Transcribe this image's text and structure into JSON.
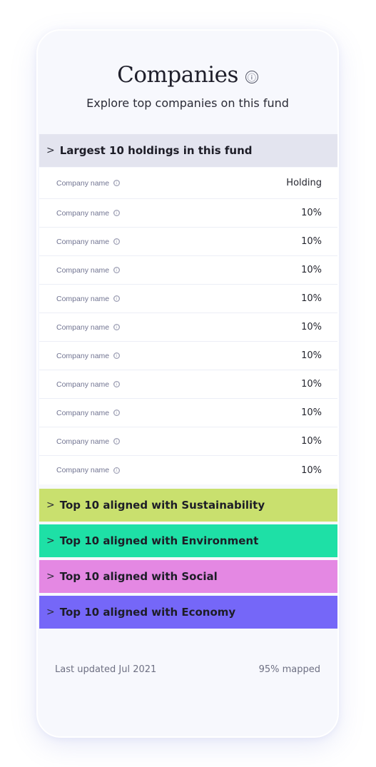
{
  "header": {
    "title": "Companies",
    "info_icon": "ⓘ",
    "subtitle": "Explore top companies on this fund"
  },
  "sections": {
    "largest": {
      "chevron": ">",
      "label": "Largest 10 holdings in this fund",
      "color": "#e3e4ef"
    },
    "sustainability": {
      "chevron": ">",
      "label": "Top 10 aligned with Sustainability",
      "color": "#c9e06e"
    },
    "environment": {
      "chevron": ">",
      "label": "Top 10 aligned with Environment",
      "color": "#1ee0a6"
    },
    "social": {
      "chevron": ">",
      "label": "Top 10 aligned with Social",
      "color": "#e488e3"
    },
    "economy": {
      "chevron": ">",
      "label": "Top 10 aligned with Economy",
      "color": "#7567f8"
    }
  },
  "table": {
    "header": {
      "company": "Company name",
      "value": "Holding",
      "info": "ⓘ"
    },
    "rows": [
      {
        "company": "Company name",
        "value": "10%",
        "info": "ⓘ"
      },
      {
        "company": "Company name",
        "value": "10%",
        "info": "ⓘ"
      },
      {
        "company": "Company name",
        "value": "10%",
        "info": "ⓘ"
      },
      {
        "company": "Company name",
        "value": "10%",
        "info": "ⓘ"
      },
      {
        "company": "Company name",
        "value": "10%",
        "info": "ⓘ"
      },
      {
        "company": "Company name",
        "value": "10%",
        "info": "ⓘ"
      },
      {
        "company": "Company name",
        "value": "10%",
        "info": "ⓘ"
      },
      {
        "company": "Company name",
        "value": "10%",
        "info": "ⓘ"
      },
      {
        "company": "Company name",
        "value": "10%",
        "info": "ⓘ"
      },
      {
        "company": "Company name",
        "value": "10%",
        "info": "ⓘ"
      }
    ]
  },
  "footer": {
    "updated": "Last updated Jul 2021",
    "mapped": "95%  mapped"
  }
}
